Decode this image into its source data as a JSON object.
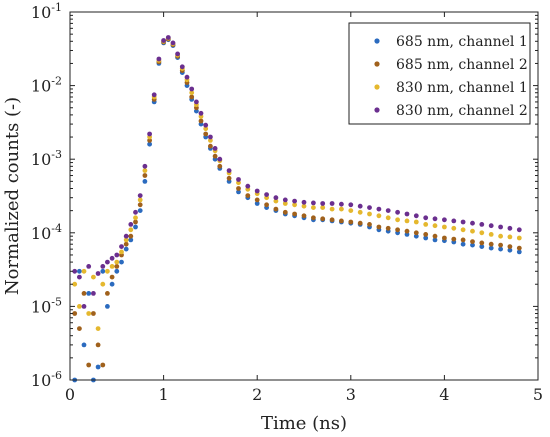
{
  "chart_data": {
    "type": "scatter",
    "xlabel": "Time (ns)",
    "ylabel": "Normalized counts (-)",
    "xlim": [
      0,
      5
    ],
    "ylim": [
      1e-06,
      0.1
    ],
    "yscale": "log",
    "grid": false,
    "legend_position": "top-right",
    "x_ticks": [
      0,
      1,
      2,
      3,
      4,
      5
    ],
    "y_ticks": [
      {
        "base": "10",
        "exp": "-6",
        "value": 1e-06
      },
      {
        "base": "10",
        "exp": "-5",
        "value": 1e-05
      },
      {
        "base": "10",
        "exp": "-4",
        "value": 0.0001
      },
      {
        "base": "10",
        "exp": "-3",
        "value": 0.001
      },
      {
        "base": "10",
        "exp": "-2",
        "value": 0.01
      },
      {
        "base": "10",
        "exp": "-1",
        "value": 0.1
      }
    ],
    "series": [
      {
        "name": "685 nm, channel 1",
        "color": "#2b6bbf",
        "points": [
          [
            0.05,
            1e-06
          ],
          [
            0.1,
            3e-05
          ],
          [
            0.15,
            3e-06
          ],
          [
            0.2,
            1.5e-05
          ],
          [
            0.25,
            1e-06
          ],
          [
            0.3,
            1.5e-06
          ],
          [
            0.35,
            3e-05
          ],
          [
            0.4,
            1e-05
          ],
          [
            0.45,
            2e-05
          ],
          [
            0.5,
            3e-05
          ],
          [
            0.55,
            4e-05
          ],
          [
            0.6,
            6e-05
          ],
          [
            0.65,
            8e-05
          ],
          [
            0.7,
            0.00012
          ],
          [
            0.75,
            0.0002
          ],
          [
            0.8,
            0.0005
          ],
          [
            0.85,
            0.0016
          ],
          [
            0.9,
            0.006
          ],
          [
            0.95,
            0.02
          ],
          [
            1.0,
            0.038
          ],
          [
            1.05,
            0.042
          ],
          [
            1.1,
            0.035
          ],
          [
            1.15,
            0.024
          ],
          [
            1.2,
            0.015
          ],
          [
            1.25,
            0.01
          ],
          [
            1.3,
            0.0065
          ],
          [
            1.35,
            0.0045
          ],
          [
            1.4,
            0.003
          ],
          [
            1.45,
            0.002
          ],
          [
            1.5,
            0.0014
          ],
          [
            1.55,
            0.001
          ],
          [
            1.6,
            0.00075
          ],
          [
            1.7,
            0.0005
          ],
          [
            1.8,
            0.00036
          ],
          [
            1.9,
            0.0003
          ],
          [
            2.0,
            0.00025
          ],
          [
            2.1,
            0.00022
          ],
          [
            2.2,
            0.0002
          ],
          [
            2.3,
            0.00018
          ],
          [
            2.4,
            0.00017
          ],
          [
            2.5,
            0.00016
          ],
          [
            2.6,
            0.00015
          ],
          [
            2.7,
            0.00015
          ],
          [
            2.8,
            0.000145
          ],
          [
            2.9,
            0.00014
          ],
          [
            3.0,
            0.000135
          ],
          [
            3.1,
            0.00013
          ],
          [
            3.2,
            0.00012
          ],
          [
            3.3,
            0.00011
          ],
          [
            3.4,
            0.000105
          ],
          [
            3.5,
            0.0001
          ],
          [
            3.6,
            9.5e-05
          ],
          [
            3.7,
            9e-05
          ],
          [
            3.8,
            8.5e-05
          ],
          [
            3.9,
            8e-05
          ],
          [
            4.0,
            7.8e-05
          ],
          [
            4.1,
            7.5e-05
          ],
          [
            4.2,
            7e-05
          ],
          [
            4.3,
            6.8e-05
          ],
          [
            4.4,
            6.5e-05
          ],
          [
            4.5,
            6.2e-05
          ],
          [
            4.6,
            6e-05
          ],
          [
            4.7,
            5.8e-05
          ],
          [
            4.8,
            5.5e-05
          ]
        ]
      },
      {
        "name": "685 nm, channel 2",
        "color": "#a0611c",
        "points": [
          [
            0.05,
            8e-06
          ],
          [
            0.1,
            5e-06
          ],
          [
            0.15,
            1.5e-05
          ],
          [
            0.2,
            1.6e-06
          ],
          [
            0.25,
            8e-06
          ],
          [
            0.3,
            3e-06
          ],
          [
            0.35,
            1.6e-06
          ],
          [
            0.4,
            1.5e-05
          ],
          [
            0.45,
            2.5e-05
          ],
          [
            0.5,
            3.5e-05
          ],
          [
            0.55,
            5e-05
          ],
          [
            0.6,
            7e-05
          ],
          [
            0.65,
            9e-05
          ],
          [
            0.7,
            0.00014
          ],
          [
            0.75,
            0.00024
          ],
          [
            0.8,
            0.0006
          ],
          [
            0.85,
            0.0018
          ],
          [
            0.9,
            0.0065
          ],
          [
            0.95,
            0.021
          ],
          [
            1.0,
            0.039
          ],
          [
            1.05,
            0.043
          ],
          [
            1.1,
            0.036
          ],
          [
            1.15,
            0.025
          ],
          [
            1.2,
            0.016
          ],
          [
            1.25,
            0.011
          ],
          [
            1.3,
            0.007
          ],
          [
            1.35,
            0.005
          ],
          [
            1.4,
            0.0033
          ],
          [
            1.45,
            0.0022
          ],
          [
            1.5,
            0.0015
          ],
          [
            1.55,
            0.0011
          ],
          [
            1.6,
            0.0008
          ],
          [
            1.7,
            0.00055
          ],
          [
            1.8,
            0.0004
          ],
          [
            1.9,
            0.00032
          ],
          [
            2.0,
            0.00028
          ],
          [
            2.1,
            0.00024
          ],
          [
            2.2,
            0.00021
          ],
          [
            2.3,
            0.00019
          ],
          [
            2.4,
            0.00018
          ],
          [
            2.5,
            0.00017
          ],
          [
            2.6,
            0.00016
          ],
          [
            2.7,
            0.000155
          ],
          [
            2.8,
            0.00015
          ],
          [
            2.9,
            0.000145
          ],
          [
            3.0,
            0.00014
          ],
          [
            3.1,
            0.000135
          ],
          [
            3.2,
            0.00013
          ],
          [
            3.3,
            0.00012
          ],
          [
            3.4,
            0.000115
          ],
          [
            3.5,
            0.00011
          ],
          [
            3.6,
            0.000105
          ],
          [
            3.7,
            0.0001
          ],
          [
            3.8,
            9.5e-05
          ],
          [
            3.9,
            9e-05
          ],
          [
            4.0,
            8.5e-05
          ],
          [
            4.1,
            8.2e-05
          ],
          [
            4.2,
            8e-05
          ],
          [
            4.3,
            7.6e-05
          ],
          [
            4.4,
            7.3e-05
          ],
          [
            4.5,
            7e-05
          ],
          [
            4.6,
            6.8e-05
          ],
          [
            4.7,
            6.5e-05
          ],
          [
            4.8,
            6.2e-05
          ]
        ]
      },
      {
        "name": "830 nm, channel 1",
        "color": "#e5b82e",
        "points": [
          [
            0.05,
            2e-05
          ],
          [
            0.1,
            1e-05
          ],
          [
            0.15,
            3e-05
          ],
          [
            0.2,
            8e-06
          ],
          [
            0.25,
            2.5e-05
          ],
          [
            0.3,
            5e-06
          ],
          [
            0.35,
            2e-05
          ],
          [
            0.4,
            3e-05
          ],
          [
            0.45,
            3.5e-05
          ],
          [
            0.5,
            4e-05
          ],
          [
            0.55,
            5.5e-05
          ],
          [
            0.6,
            8e-05
          ],
          [
            0.65,
            0.00011
          ],
          [
            0.7,
            0.00016
          ],
          [
            0.75,
            0.00028
          ],
          [
            0.8,
            0.0007
          ],
          [
            0.85,
            0.002
          ],
          [
            0.9,
            0.007
          ],
          [
            0.95,
            0.022
          ],
          [
            1.0,
            0.04
          ],
          [
            1.05,
            0.044
          ],
          [
            1.1,
            0.037
          ],
          [
            1.15,
            0.026
          ],
          [
            1.2,
            0.017
          ],
          [
            1.25,
            0.012
          ],
          [
            1.3,
            0.008
          ],
          [
            1.35,
            0.0055
          ],
          [
            1.4,
            0.0038
          ],
          [
            1.45,
            0.0026
          ],
          [
            1.5,
            0.0018
          ],
          [
            1.55,
            0.0013
          ],
          [
            1.6,
            0.00095
          ],
          [
            1.7,
            0.00065
          ],
          [
            1.8,
            0.00048
          ],
          [
            1.9,
            0.00039
          ],
          [
            2.0,
            0.00034
          ],
          [
            2.1,
            0.0003
          ],
          [
            2.2,
            0.00027
          ],
          [
            2.3,
            0.00025
          ],
          [
            2.4,
            0.00024
          ],
          [
            2.5,
            0.00023
          ],
          [
            2.6,
            0.00022
          ],
          [
            2.7,
            0.00022
          ],
          [
            2.8,
            0.00021
          ],
          [
            2.9,
            0.00021
          ],
          [
            3.0,
            0.0002
          ],
          [
            3.1,
            0.00019
          ],
          [
            3.2,
            0.00018
          ],
          [
            3.3,
            0.00017
          ],
          [
            3.4,
            0.00016
          ],
          [
            3.5,
            0.00015
          ],
          [
            3.6,
            0.000145
          ],
          [
            3.7,
            0.00014
          ],
          [
            3.8,
            0.00013
          ],
          [
            3.9,
            0.000125
          ],
          [
            4.0,
            0.00012
          ],
          [
            4.1,
            0.000115
          ],
          [
            4.2,
            0.00011
          ],
          [
            4.3,
            0.000105
          ],
          [
            4.4,
            0.0001
          ],
          [
            4.5,
            9.5e-05
          ],
          [
            4.6,
            9e-05
          ],
          [
            4.7,
            8.8e-05
          ],
          [
            4.8,
            8.5e-05
          ]
        ]
      },
      {
        "name": "830 nm, channel 2",
        "color": "#6b2f8f",
        "points": [
          [
            0.05,
            3e-05
          ],
          [
            0.1,
            2.5e-05
          ],
          [
            0.15,
            1e-05
          ],
          [
            0.2,
            3.5e-05
          ],
          [
            0.25,
            1.5e-05
          ],
          [
            0.3,
            2.8e-05
          ],
          [
            0.35,
            3.5e-05
          ],
          [
            0.4,
            4e-05
          ],
          [
            0.45,
            4.5e-05
          ],
          [
            0.5,
            5e-05
          ],
          [
            0.55,
            6.5e-05
          ],
          [
            0.6,
            9e-05
          ],
          [
            0.65,
            0.00013
          ],
          [
            0.7,
            0.00019
          ],
          [
            0.75,
            0.00032
          ],
          [
            0.8,
            0.0008
          ],
          [
            0.85,
            0.0022
          ],
          [
            0.9,
            0.0075
          ],
          [
            0.95,
            0.023
          ],
          [
            1.0,
            0.041
          ],
          [
            1.05,
            0.045
          ],
          [
            1.1,
            0.038
          ],
          [
            1.15,
            0.027
          ],
          [
            1.2,
            0.018
          ],
          [
            1.25,
            0.013
          ],
          [
            1.3,
            0.009
          ],
          [
            1.35,
            0.006
          ],
          [
            1.4,
            0.0042
          ],
          [
            1.45,
            0.0029
          ],
          [
            1.5,
            0.002
          ],
          [
            1.55,
            0.0014
          ],
          [
            1.6,
            0.001
          ],
          [
            1.7,
            0.0007
          ],
          [
            1.8,
            0.00053
          ],
          [
            1.9,
            0.00043
          ],
          [
            2.0,
            0.00037
          ],
          [
            2.1,
            0.00033
          ],
          [
            2.2,
            0.0003
          ],
          [
            2.3,
            0.00028
          ],
          [
            2.4,
            0.00027
          ],
          [
            2.5,
            0.00026
          ],
          [
            2.6,
            0.000255
          ],
          [
            2.7,
            0.00025
          ],
          [
            2.8,
            0.00025
          ],
          [
            2.9,
            0.000245
          ],
          [
            3.0,
            0.00024
          ],
          [
            3.1,
            0.00023
          ],
          [
            3.2,
            0.00022
          ],
          [
            3.3,
            0.00021
          ],
          [
            3.4,
            0.0002
          ],
          [
            3.5,
            0.00019
          ],
          [
            3.6,
            0.00018
          ],
          [
            3.7,
            0.00017
          ],
          [
            3.8,
            0.00016
          ],
          [
            3.9,
            0.000155
          ],
          [
            4.0,
            0.00015
          ],
          [
            4.1,
            0.000145
          ],
          [
            4.2,
            0.00014
          ],
          [
            4.3,
            0.000135
          ],
          [
            4.4,
            0.00013
          ],
          [
            4.5,
            0.000125
          ],
          [
            4.6,
            0.00012
          ],
          [
            4.7,
            0.000115
          ],
          [
            4.8,
            0.00011
          ]
        ]
      }
    ]
  }
}
